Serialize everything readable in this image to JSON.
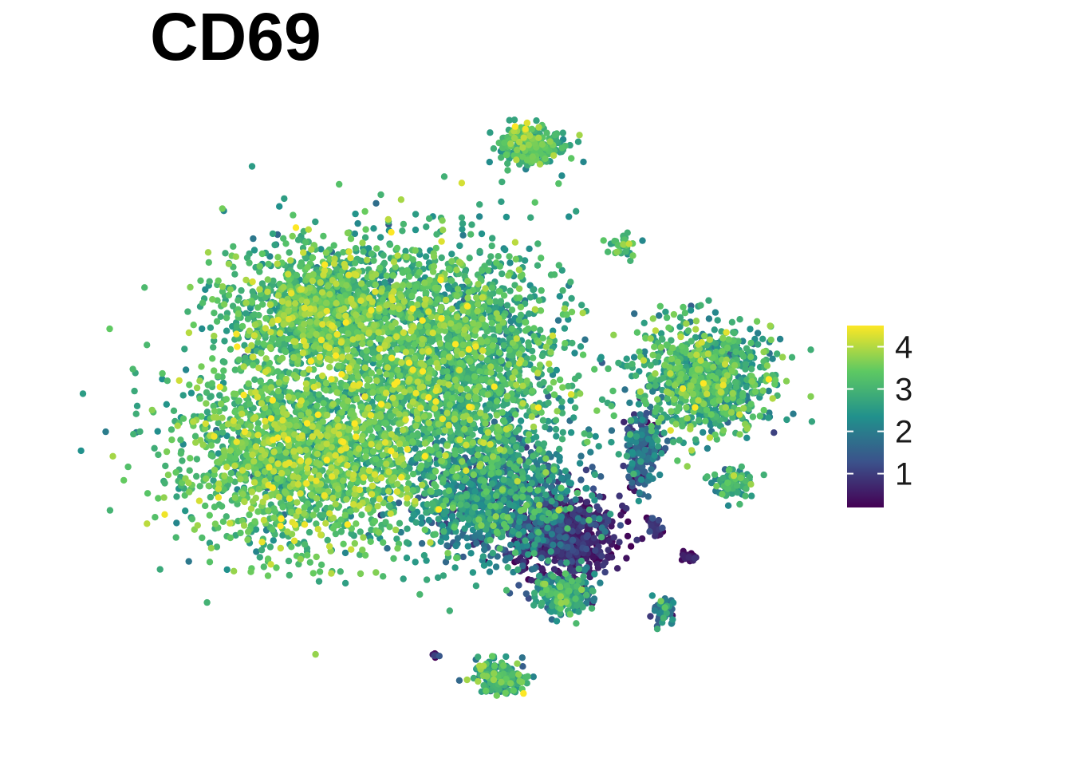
{
  "chart_data": {
    "type": "scatter",
    "title": "CD69",
    "xlabel": "",
    "ylabel": "",
    "axes_visible": false,
    "grid": false,
    "colorscale": {
      "name": "viridis",
      "stops": [
        "#440154",
        "#3b528b",
        "#21918c",
        "#5ec962",
        "#fde725"
      ],
      "range": [
        0.2,
        4.5
      ],
      "ticks": [
        1,
        2,
        3,
        4
      ],
      "tick_labels": [
        "1",
        "2",
        "3",
        "4"
      ],
      "legend_position": "right"
    },
    "clusters": [
      {
        "id": "main-left-upper",
        "x": 3.2,
        "y": 6.4,
        "sx": 1.9,
        "sy": 1.2,
        "n": 1400,
        "value": 3.1,
        "spread": 0.55
      },
      {
        "id": "main-left-lower",
        "x": 2.8,
        "y": 3.6,
        "sx": 2.2,
        "sy": 1.7,
        "n": 2100,
        "value": 3.2,
        "spread": 0.55
      },
      {
        "id": "main-center",
        "x": 5.6,
        "y": 5.2,
        "sx": 1.8,
        "sy": 2.2,
        "n": 2000,
        "value": 2.9,
        "spread": 0.6
      },
      {
        "id": "main-center-lower",
        "x": 6.4,
        "y": 2.8,
        "sx": 1.4,
        "sy": 1.1,
        "n": 900,
        "value": 2.1,
        "spread": 0.6
      },
      {
        "id": "main-dark-tail",
        "x": 7.6,
        "y": 2.0,
        "sx": 0.9,
        "sy": 0.7,
        "n": 700,
        "value": 0.6,
        "spread": 0.35
      },
      {
        "id": "top-small",
        "x": 7.0,
        "y": 9.5,
        "sx": 0.55,
        "sy": 0.35,
        "n": 260,
        "value": 3.0,
        "spread": 0.5
      },
      {
        "id": "right-large",
        "x": 10.2,
        "y": 5.0,
        "sx": 1.2,
        "sy": 1.0,
        "n": 900,
        "value": 2.8,
        "spread": 0.6
      },
      {
        "id": "right-dark-stalk",
        "x": 9.1,
        "y": 3.6,
        "sx": 0.35,
        "sy": 0.7,
        "n": 200,
        "value": 1.4,
        "spread": 0.6
      },
      {
        "id": "right-small",
        "x": 10.8,
        "y": 3.0,
        "sx": 0.35,
        "sy": 0.25,
        "n": 90,
        "value": 2.6,
        "spread": 0.5
      },
      {
        "id": "bottom-mid",
        "x": 7.6,
        "y": 0.9,
        "sx": 0.45,
        "sy": 0.4,
        "n": 220,
        "value": 2.4,
        "spread": 0.6
      },
      {
        "id": "bottom-far",
        "x": 6.4,
        "y": -0.7,
        "sx": 0.45,
        "sy": 0.3,
        "n": 180,
        "value": 2.7,
        "spread": 0.6
      },
      {
        "id": "mini-right-a",
        "x": 9.5,
        "y": 0.6,
        "sx": 0.2,
        "sy": 0.25,
        "n": 50,
        "value": 1.8,
        "spread": 0.6
      },
      {
        "id": "mini-right-b",
        "x": 10.0,
        "y": 1.6,
        "sx": 0.15,
        "sy": 0.08,
        "n": 25,
        "value": 0.5,
        "spread": 0.3
      },
      {
        "id": "mini-right-c",
        "x": 9.3,
        "y": 2.2,
        "sx": 0.12,
        "sy": 0.15,
        "n": 30,
        "value": 0.6,
        "spread": 0.4
      },
      {
        "id": "tiny-top-right",
        "x": 8.7,
        "y": 7.6,
        "sx": 0.25,
        "sy": 0.25,
        "n": 30,
        "value": 3.1,
        "spread": 0.5
      },
      {
        "id": "tiny-bottom-left",
        "x": 5.2,
        "y": -0.3,
        "sx": 0.08,
        "sy": 0.04,
        "n": 8,
        "value": 0.8,
        "spread": 0.4
      }
    ]
  }
}
